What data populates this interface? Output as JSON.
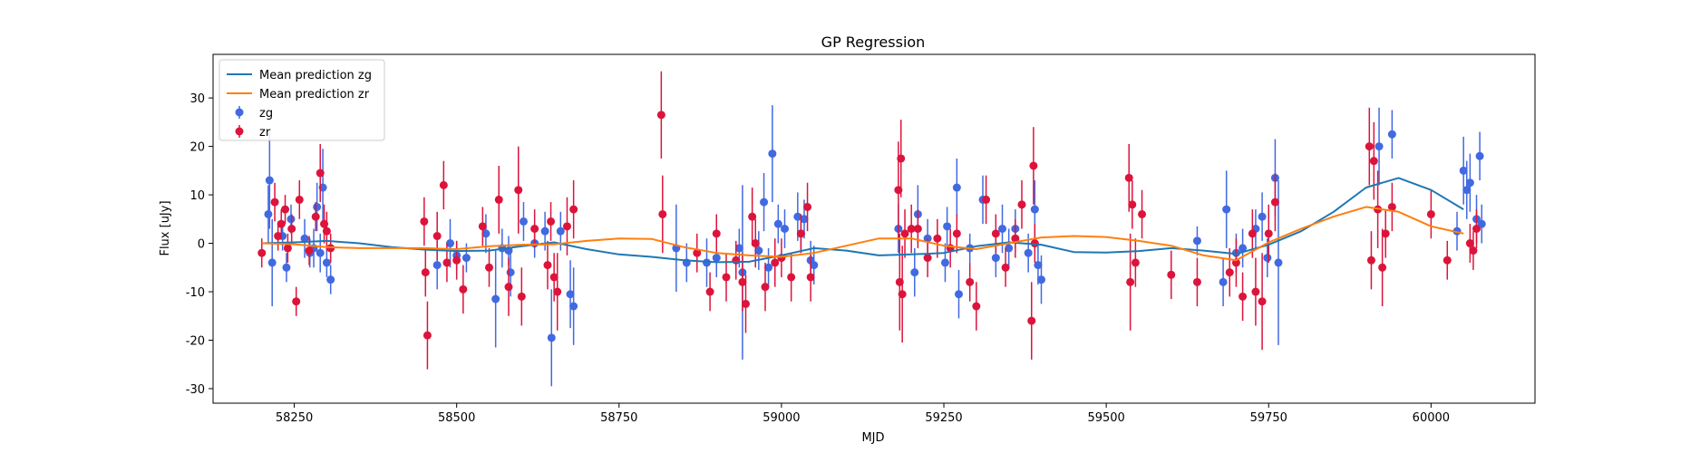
{
  "chart_data": {
    "type": "scatter",
    "title": "GP Regression",
    "xlabel": "MJD",
    "ylabel": "Flux [uJy]",
    "xlim": [
      58125,
      60160
    ],
    "ylim": [
      -33,
      39
    ],
    "xticks": [
      58250,
      58500,
      58750,
      59000,
      59250,
      59500,
      59750,
      60000
    ],
    "yticks": [
      -30,
      -20,
      -10,
      0,
      10,
      20,
      30
    ],
    "grid": false,
    "legend_position": "top-left",
    "legend": [
      {
        "label": "Mean prediction zg",
        "kind": "line",
        "color": "#1f77b4"
      },
      {
        "label": "Mean prediction zr",
        "kind": "line",
        "color": "#ff7f0e"
      },
      {
        "label": "zg",
        "kind": "errorbar",
        "color": "#4169e1"
      },
      {
        "label": "zr",
        "kind": "errorbar",
        "color": "#dc143c"
      }
    ],
    "lines": [
      {
        "name": "Mean prediction zg",
        "color": "#1f77b4",
        "x": [
          58200,
          58250,
          58300,
          58350,
          58400,
          58450,
          58500,
          58550,
          58600,
          58650,
          58700,
          58750,
          58800,
          58850,
          58900,
          58950,
          59000,
          59050,
          59100,
          59150,
          59200,
          59250,
          59300,
          59350,
          59400,
          59450,
          59500,
          59550,
          59600,
          59650,
          59700,
          59750,
          59800,
          59850,
          59900,
          59950,
          60000,
          60050
        ],
        "y": [
          0.0,
          0.2,
          0.5,
          0.0,
          -0.8,
          -1.3,
          -1.6,
          -1.5,
          -0.6,
          0.2,
          -1.2,
          -2.3,
          -2.8,
          -3.5,
          -3.9,
          -3.8,
          -2.5,
          -1.0,
          -1.5,
          -2.5,
          -2.3,
          -2.0,
          -0.6,
          0.2,
          -0.3,
          -1.8,
          -1.9,
          -1.6,
          -1.0,
          -1.5,
          -2.2,
          -0.3,
          2.5,
          6.5,
          11.5,
          13.5,
          11.0,
          7.0
        ]
      },
      {
        "name": "Mean prediction zr",
        "color": "#ff7f0e",
        "x": [
          58200,
          58250,
          58300,
          58350,
          58400,
          58450,
          58500,
          58550,
          58600,
          58650,
          58700,
          58750,
          58800,
          58850,
          58900,
          58950,
          59000,
          59050,
          59100,
          59150,
          59200,
          59250,
          59300,
          59350,
          59400,
          59450,
          59500,
          59550,
          59600,
          59650,
          59700,
          59750,
          59800,
          59850,
          59900,
          59950,
          60000,
          60050
        ],
        "y": [
          0.0,
          -0.2,
          -0.8,
          -1.0,
          -1.0,
          -1.0,
          -1.2,
          -0.6,
          -0.3,
          -0.2,
          0.5,
          1.0,
          0.9,
          -0.8,
          -2.0,
          -2.5,
          -2.8,
          -2.0,
          -0.5,
          1.0,
          1.0,
          -0.5,
          -1.2,
          0.0,
          1.2,
          1.5,
          1.3,
          0.5,
          -0.5,
          -2.5,
          -3.5,
          0.2,
          3.0,
          5.5,
          7.5,
          6.5,
          3.5,
          2.0
        ]
      }
    ],
    "series": [
      {
        "name": "zg",
        "color": "#4169e1",
        "points": [
          [
            58210,
            6,
            6
          ],
          [
            58212,
            13,
            10
          ],
          [
            58216,
            -4,
            9
          ],
          [
            58232,
            1.5,
            3
          ],
          [
            58238,
            -5,
            3
          ],
          [
            58245,
            5,
            3
          ],
          [
            58266,
            1,
            4
          ],
          [
            58274,
            -2,
            3
          ],
          [
            58280,
            -1,
            4
          ],
          [
            58285,
            7.5,
            5
          ],
          [
            58290,
            -2,
            4
          ],
          [
            58294,
            11.5,
            8
          ],
          [
            58300,
            -4,
            3
          ],
          [
            58306,
            -7.5,
            3
          ],
          [
            58470,
            -4.5,
            5
          ],
          [
            58490,
            0,
            5
          ],
          [
            58500,
            -2.5,
            3
          ],
          [
            58515,
            -3,
            3
          ],
          [
            58545,
            2,
            4
          ],
          [
            58560,
            -11.5,
            10
          ],
          [
            58570,
            -1,
            4
          ],
          [
            58580,
            -1.5,
            3
          ],
          [
            58583,
            -6,
            5
          ],
          [
            58603,
            4.5,
            4
          ],
          [
            58620,
            0,
            3
          ],
          [
            58636,
            2.5,
            4
          ],
          [
            58646,
            -19.5,
            10
          ],
          [
            58660,
            2.5,
            4
          ],
          [
            58675,
            -10.5,
            7
          ],
          [
            58680,
            -13,
            8
          ],
          [
            58838,
            -1,
            9
          ],
          [
            58854,
            -4,
            4
          ],
          [
            58885,
            -4,
            5
          ],
          [
            58900,
            -3,
            4
          ],
          [
            58935,
            -1,
            4
          ],
          [
            58940,
            -6,
            18
          ],
          [
            58965,
            -1.5,
            4
          ],
          [
            58973,
            8.5,
            6
          ],
          [
            58980,
            -5,
            4
          ],
          [
            58986,
            18.5,
            10
          ],
          [
            58995,
            4,
            4
          ],
          [
            59005,
            3,
            4
          ],
          [
            59025,
            5.5,
            5
          ],
          [
            59030,
            2,
            4
          ],
          [
            59035,
            5,
            4
          ],
          [
            59045,
            -3.5,
            4
          ],
          [
            59050,
            -4.5,
            4
          ],
          [
            59180,
            3,
            5
          ],
          [
            59205,
            -6,
            5
          ],
          [
            59210,
            6,
            6
          ],
          [
            59225,
            1,
            4
          ],
          [
            59252,
            -4,
            4
          ],
          [
            59255,
            3.5,
            4
          ],
          [
            59270,
            11.5,
            6
          ],
          [
            59273,
            -10.5,
            5
          ],
          [
            59290,
            -1,
            3
          ],
          [
            59310,
            9,
            5
          ],
          [
            59330,
            -3,
            4
          ],
          [
            59340,
            3,
            5
          ],
          [
            59350,
            -1,
            4
          ],
          [
            59360,
            3,
            4
          ],
          [
            59380,
            -2,
            4
          ],
          [
            59390,
            7,
            6
          ],
          [
            59395,
            -4.5,
            4
          ],
          [
            59400,
            -7.5,
            5
          ],
          [
            59640,
            0.5,
            3
          ],
          [
            59680,
            -8,
            5
          ],
          [
            59685,
            7,
            8
          ],
          [
            59700,
            -2,
            4
          ],
          [
            59710,
            -1,
            4
          ],
          [
            59730,
            3,
            4
          ],
          [
            59740,
            5.5,
            5
          ],
          [
            59748,
            -3,
            4
          ],
          [
            59760,
            13.5,
            8
          ],
          [
            59765,
            -4,
            17
          ],
          [
            59920,
            20,
            8
          ],
          [
            59940,
            22.5,
            5
          ],
          [
            60040,
            2.5,
            4
          ],
          [
            60050,
            15,
            7
          ],
          [
            60055,
            11,
            6
          ],
          [
            60060,
            12.5,
            6
          ],
          [
            60070,
            5,
            5
          ],
          [
            60075,
            18,
            5
          ],
          [
            60078,
            4,
            4
          ]
        ]
      },
      {
        "name": "zr",
        "color": "#dc143c",
        "points": [
          [
            58200,
            -2,
            3
          ],
          [
            58220,
            8.5,
            4
          ],
          [
            58225,
            1.5,
            3
          ],
          [
            58230,
            4,
            3
          ],
          [
            58236,
            7,
            3
          ],
          [
            58240,
            -1,
            3
          ],
          [
            58246,
            3,
            3
          ],
          [
            58253,
            -12,
            3
          ],
          [
            58258,
            9,
            4
          ],
          [
            58273,
            -1.5,
            3
          ],
          [
            58283,
            5.5,
            3
          ],
          [
            58290,
            14.5,
            6
          ],
          [
            58296,
            4,
            4
          ],
          [
            58300,
            2.5,
            4
          ],
          [
            58306,
            -1,
            3
          ],
          [
            58450,
            4.5,
            5
          ],
          [
            58452,
            -6,
            5
          ],
          [
            58455,
            -19,
            7
          ],
          [
            58470,
            1.5,
            5
          ],
          [
            58480,
            12,
            5
          ],
          [
            58485,
            -4,
            4
          ],
          [
            58500,
            -3.5,
            4
          ],
          [
            58510,
            -9.5,
            5
          ],
          [
            58540,
            3.5,
            4
          ],
          [
            58550,
            -5,
            4
          ],
          [
            58565,
            9,
            7
          ],
          [
            58580,
            -9,
            6
          ],
          [
            58595,
            11,
            9
          ],
          [
            58600,
            -11,
            6
          ],
          [
            58620,
            3,
            4
          ],
          [
            58640,
            -4.5,
            5
          ],
          [
            58645,
            4.5,
            4
          ],
          [
            58650,
            -7,
            5
          ],
          [
            58655,
            -10,
            8
          ],
          [
            58670,
            3.5,
            6
          ],
          [
            58680,
            7,
            6
          ],
          [
            58815,
            26.5,
            9
          ],
          [
            58817,
            6,
            8
          ],
          [
            58870,
            -2,
            4
          ],
          [
            58890,
            -10,
            4
          ],
          [
            58900,
            2,
            4
          ],
          [
            58915,
            -7,
            5
          ],
          [
            58930,
            -3.5,
            4
          ],
          [
            58940,
            -8,
            6
          ],
          [
            58945,
            -12.5,
            6
          ],
          [
            58955,
            5.5,
            6
          ],
          [
            58960,
            0,
            5
          ],
          [
            58975,
            -9,
            5
          ],
          [
            58990,
            -4,
            5
          ],
          [
            59000,
            -3,
            4
          ],
          [
            59015,
            -7,
            5
          ],
          [
            59030,
            2,
            4
          ],
          [
            59040,
            7.5,
            5
          ],
          [
            59045,
            -7,
            5
          ],
          [
            59180,
            11,
            10
          ],
          [
            59182,
            -8,
            10
          ],
          [
            59184,
            17.5,
            8
          ],
          [
            59186,
            -10.5,
            10
          ],
          [
            59190,
            2,
            5
          ],
          [
            59200,
            3,
            5
          ],
          [
            59210,
            3,
            4
          ],
          [
            59225,
            -3,
            4
          ],
          [
            59240,
            1,
            4
          ],
          [
            59260,
            -1,
            4
          ],
          [
            59270,
            2,
            4
          ],
          [
            59290,
            -8,
            4
          ],
          [
            59300,
            -13,
            5
          ],
          [
            59315,
            9,
            5
          ],
          [
            59330,
            2,
            4
          ],
          [
            59345,
            -5,
            4
          ],
          [
            59360,
            1,
            4
          ],
          [
            59370,
            8,
            5
          ],
          [
            59385,
            -16,
            8
          ],
          [
            59388,
            16,
            8
          ],
          [
            59390,
            0,
            4
          ],
          [
            59535,
            13.5,
            7
          ],
          [
            59537,
            -8,
            10
          ],
          [
            59540,
            8,
            5
          ],
          [
            59545,
            -4,
            5
          ],
          [
            59555,
            6,
            5
          ],
          [
            59600,
            -6.5,
            5
          ],
          [
            59640,
            -8,
            5
          ],
          [
            59690,
            -6,
            5
          ],
          [
            59700,
            -4,
            5
          ],
          [
            59710,
            -11,
            5
          ],
          [
            59725,
            2,
            5
          ],
          [
            59730,
            -10,
            7
          ],
          [
            59740,
            -12,
            10
          ],
          [
            59750,
            2,
            6
          ],
          [
            59760,
            8.5,
            6
          ],
          [
            59905,
            20,
            8
          ],
          [
            59908,
            -3.5,
            6
          ],
          [
            59912,
            17,
            8
          ],
          [
            59918,
            7,
            8
          ],
          [
            59925,
            -5,
            8
          ],
          [
            59930,
            2,
            5
          ],
          [
            59940,
            7.5,
            5
          ],
          [
            60000,
            6,
            5
          ],
          [
            60025,
            -3.5,
            4
          ],
          [
            60060,
            0,
            4
          ],
          [
            60065,
            -1.5,
            4
          ],
          [
            60070,
            3,
            4
          ]
        ]
      }
    ]
  }
}
